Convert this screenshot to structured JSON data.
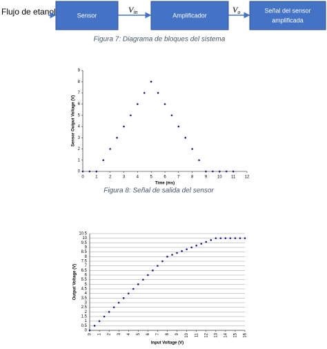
{
  "diagram": {
    "input": "Flujo de etanol",
    "nodes": [
      {
        "label": "Sensor"
      },
      {
        "label": "Amplificador"
      },
      {
        "label": [
          "Señal del sensor",
          "amplificada"
        ]
      }
    ],
    "edges": [
      {
        "symbol": "V",
        "subscript": "in"
      },
      {
        "symbol": "V",
        "subscript": "o"
      }
    ]
  },
  "captions": [
    "Figura 7: Diagrama de bloques del sistema",
    "Figura 8: Señal de salida del sensor"
  ],
  "chart_data": [
    {
      "type": "line",
      "x_label": "Time (ms)",
      "y_label": "Sensor Output Voltage (V)",
      "x": [
        0,
        0.5,
        1,
        1.5,
        2,
        2.5,
        3,
        3.5,
        4,
        4.5,
        5,
        5.5,
        6,
        6.5,
        7,
        7.5,
        8,
        8.5,
        9,
        9.5,
        10,
        10.5,
        11
      ],
      "series": [
        {
          "color": "#1a1a8c",
          "values": [
            0,
            0,
            0,
            1,
            2,
            3,
            4,
            5,
            6,
            7,
            8,
            7,
            6,
            5,
            4,
            3,
            2,
            1,
            0,
            0,
            0,
            0,
            0
          ]
        }
      ],
      "xlim": [
        0,
        12
      ],
      "xticks": [
        0,
        1,
        2,
        3,
        4,
        5,
        6,
        7,
        8,
        9,
        10,
        11,
        12
      ],
      "ylim": [
        0,
        9
      ],
      "yticks": [
        0,
        1,
        2,
        3,
        4,
        5,
        6,
        7,
        8,
        9
      ],
      "grid": false
    },
    {
      "type": "line",
      "x_label": "Input Voltage (V)",
      "y_label": "Output Voltage (V)",
      "x": [
        0,
        0.5,
        1,
        1.5,
        2,
        2.5,
        3,
        3.5,
        4,
        4.5,
        5,
        5.5,
        6,
        6.5,
        7,
        7.5,
        8,
        8.5,
        9,
        9.5,
        10,
        10.5,
        11,
        11.5,
        12,
        12.5,
        13,
        13.5,
        14,
        14.5,
        15,
        15.5,
        16
      ],
      "series": [
        {
          "color": "#1a1a8c",
          "values": [
            0,
            0.5,
            1,
            1.5,
            2,
            2.5,
            3,
            3.5,
            4,
            4.5,
            5,
            5.5,
            6,
            6.5,
            7,
            7.5,
            8,
            8.2,
            8.4,
            8.6,
            8.8,
            9,
            9.2,
            9.4,
            9.6,
            9.8,
            10,
            10,
            10,
            10,
            10,
            10,
            10
          ]
        }
      ],
      "xlim": [
        0,
        16
      ],
      "xticks": [
        0,
        1,
        2,
        3,
        4,
        5,
        6,
        7,
        8,
        9,
        10,
        11,
        12,
        13,
        14,
        15,
        16
      ],
      "ylim": [
        0,
        10.5
      ],
      "yticks": [
        0,
        0.5,
        1,
        1.5,
        2,
        2.5,
        3,
        3.5,
        4,
        4.5,
        5,
        5.5,
        6,
        6.5,
        7,
        7.5,
        8,
        8.5,
        9,
        9.5,
        10,
        10.5
      ],
      "grid": true,
      "rotate_x_labels": true
    }
  ]
}
